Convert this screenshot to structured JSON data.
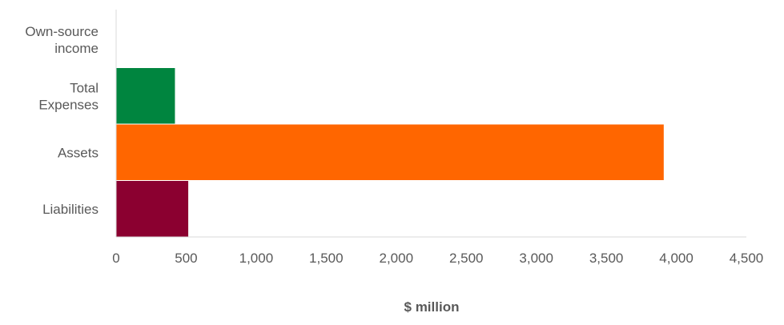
{
  "chart_data": {
    "type": "bar",
    "orientation": "horizontal",
    "categories": [
      [
        "Own-source",
        "income"
      ],
      [
        "Total",
        "Expenses"
      ],
      [
        "Assets"
      ],
      [
        "Liabilities"
      ]
    ],
    "values": [
      0,
      420,
      3910,
      515
    ],
    "colors": [
      "#00853f",
      "#00853f",
      "#ff6600",
      "#8b0030"
    ],
    "xlim": [
      0,
      4500
    ],
    "xticks": [
      0,
      500,
      1000,
      1500,
      2000,
      2500,
      3000,
      3500,
      4000,
      4500
    ],
    "xtick_labels": [
      "0",
      "500",
      "1,000",
      "1,500",
      "2,000",
      "2,500",
      "3,000",
      "3,500",
      "4,000",
      "4,500"
    ],
    "xlabel": "$ million",
    "title": "",
    "grid": false,
    "legend": "none"
  }
}
